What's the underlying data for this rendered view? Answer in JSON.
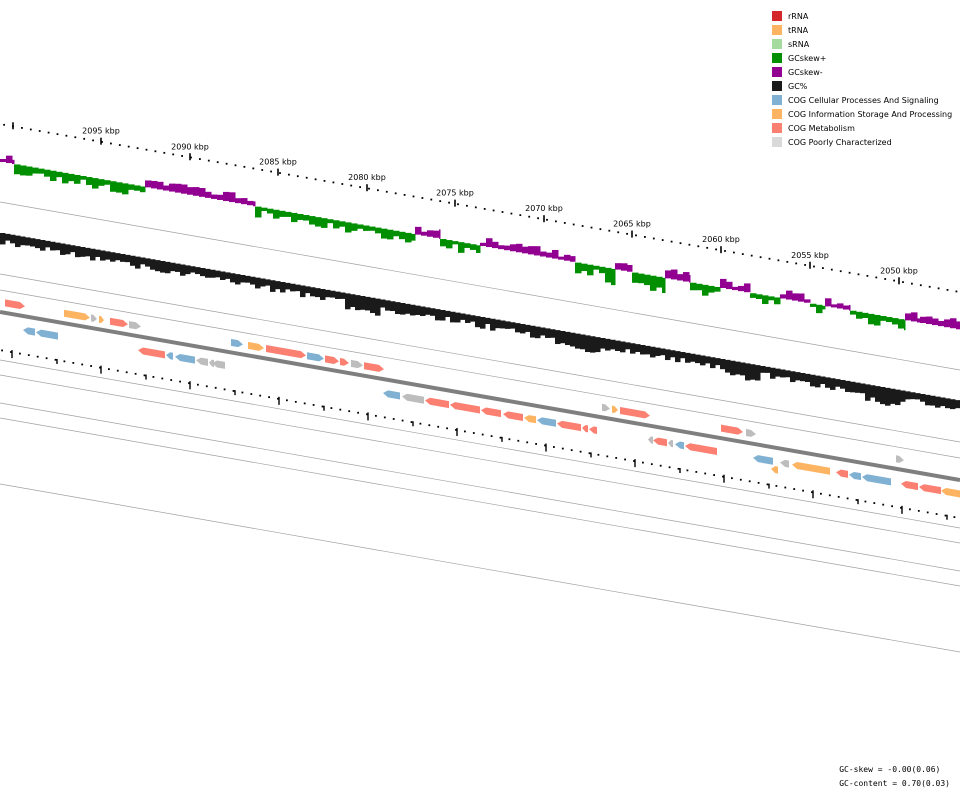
{
  "figure": {
    "tick_labels": [
      "2095 kbp",
      "2090 kbp",
      "2085 kbp",
      "2080 kbp",
      "2075 kbp",
      "2070 kbp",
      "2065 kbp",
      "2060 kbp",
      "2055 kbp",
      "2050 kbp"
    ],
    "colors": {
      "gc_skew_pos": "#008f00",
      "gc_skew_neg": "#910091",
      "gc_content": "#1a1a1a",
      "backbone": "#7f7f7f",
      "ring_line": "#a0a0a0"
    }
  },
  "legend": {
    "items": [
      {
        "label": "rRNA",
        "color": "#d62728"
      },
      {
        "label": "tRNA",
        "color": "#fdb462"
      },
      {
        "label": "sRNA",
        "color": "#a6dba0"
      },
      {
        "label": "GCskew+",
        "color": "#008f00"
      },
      {
        "label": "GCskew-",
        "color": "#910091"
      },
      {
        "label": "GC%",
        "color": "#1a1a1a"
      },
      {
        "label": "COG Cellular Processes And Signaling",
        "color": "#80b1d3"
      },
      {
        "label": "COG Information Storage And Processing",
        "color": "#fdb462"
      },
      {
        "label": "COG Metabolism",
        "color": "#fb8072"
      },
      {
        "label": "COG Poorly Characterized",
        "color": "#d9d9d9"
      }
    ]
  },
  "stats": {
    "gc_skew": "GC-skew = -0.00(0.06)",
    "gc_content": "GC-content = 0.70(0.03)"
  },
  "genes": {
    "outer": [
      {
        "x": 5,
        "len": 20,
        "cat": "M",
        "dir": 1
      },
      {
        "x": 64,
        "len": 26,
        "cat": "I",
        "dir": 1
      },
      {
        "x": 91,
        "len": 6,
        "cat": "P",
        "dir": 1
      },
      {
        "x": 99,
        "len": 5,
        "cat": "I",
        "dir": 1
      },
      {
        "x": 110,
        "len": 18,
        "cat": "M",
        "dir": 1
      },
      {
        "x": 129,
        "len": 12,
        "cat": "P",
        "dir": 1
      },
      {
        "x": 231,
        "len": 12,
        "cat": "C",
        "dir": 1
      },
      {
        "x": 248,
        "len": 16,
        "cat": "I",
        "dir": 1
      },
      {
        "x": 266,
        "len": 40,
        "cat": "M",
        "dir": 1
      },
      {
        "x": 307,
        "len": 17,
        "cat": "C",
        "dir": 1
      },
      {
        "x": 325,
        "len": 14,
        "cat": "M",
        "dir": 1
      },
      {
        "x": 340,
        "len": 9,
        "cat": "M",
        "dir": 1
      },
      {
        "x": 351,
        "len": 12,
        "cat": "P",
        "dir": 1
      },
      {
        "x": 364,
        "len": 20,
        "cat": "M",
        "dir": 1
      },
      {
        "x": 602,
        "len": 8,
        "cat": "P",
        "dir": 1
      },
      {
        "x": 612,
        "len": 6,
        "cat": "I",
        "dir": 1
      },
      {
        "x": 620,
        "len": 30,
        "cat": "M",
        "dir": 1
      },
      {
        "x": 721,
        "len": 22,
        "cat": "M",
        "dir": 1
      },
      {
        "x": 746,
        "len": 10,
        "cat": "P",
        "dir": 1
      },
      {
        "x": 896,
        "len": 8,
        "cat": "P",
        "dir": 1
      }
    ],
    "inner": [
      {
        "x": 23,
        "len": 12,
        "cat": "C",
        "dir": -1
      },
      {
        "x": 36,
        "len": 22,
        "cat": "C",
        "dir": -1
      },
      {
        "x": 138,
        "len": 27,
        "cat": "M",
        "dir": -1
      },
      {
        "x": 166,
        "len": 7,
        "cat": "C",
        "dir": -1
      },
      {
        "x": 175,
        "len": 20,
        "cat": "C",
        "dir": -1
      },
      {
        "x": 196,
        "len": 12,
        "cat": "P",
        "dir": -1
      },
      {
        "x": 209,
        "len": 5,
        "cat": "P",
        "dir": -1
      },
      {
        "x": 212,
        "len": 13,
        "cat": "P",
        "dir": -1
      },
      {
        "x": 383,
        "len": 17,
        "cat": "C",
        "dir": -1
      },
      {
        "x": 402,
        "len": 22,
        "cat": "P",
        "dir": -1
      },
      {
        "x": 425,
        "len": 24,
        "cat": "M",
        "dir": -1
      },
      {
        "x": 450,
        "len": 30,
        "cat": "M",
        "dir": -1
      },
      {
        "x": 481,
        "len": 20,
        "cat": "M",
        "dir": -1
      },
      {
        "x": 503,
        "len": 20,
        "cat": "M",
        "dir": -1
      },
      {
        "x": 524,
        "len": 12,
        "cat": "I",
        "dir": -1
      },
      {
        "x": 537,
        "len": 19,
        "cat": "C",
        "dir": -1
      },
      {
        "x": 557,
        "len": 24,
        "cat": "M",
        "dir": -1
      },
      {
        "x": 582,
        "len": 6,
        "cat": "M",
        "dir": -1
      },
      {
        "x": 589,
        "len": 8,
        "cat": "M",
        "dir": -1
      },
      {
        "x": 648,
        "len": 5,
        "cat": "P",
        "dir": -1
      },
      {
        "x": 653,
        "len": 14,
        "cat": "M",
        "dir": -1
      },
      {
        "x": 668,
        "len": 5,
        "cat": "P",
        "dir": -1
      },
      {
        "x": 675,
        "len": 9,
        "cat": "C",
        "dir": -1
      },
      {
        "x": 685,
        "len": 32,
        "cat": "M",
        "dir": -1
      },
      {
        "x": 753,
        "len": 20,
        "cat": "C",
        "dir": -1
      },
      {
        "x": 780,
        "len": 9,
        "cat": "P",
        "dir": -1
      },
      {
        "x": 792,
        "len": 38,
        "cat": "I",
        "dir": -1
      },
      {
        "x": 836,
        "len": 12,
        "cat": "M",
        "dir": -1
      },
      {
        "x": 849,
        "len": 12,
        "cat": "C",
        "dir": -1
      },
      {
        "x": 862,
        "len": 29,
        "cat": "C",
        "dir": -1
      },
      {
        "x": 901,
        "len": 17,
        "cat": "M",
        "dir": -1
      },
      {
        "x": 919,
        "len": 22,
        "cat": "M",
        "dir": -1
      },
      {
        "x": 941,
        "len": 19,
        "cat": "I",
        "dir": -1
      },
      {
        "x": 771,
        "len": 7,
        "cat": "I",
        "dir": -1
      }
    ]
  }
}
